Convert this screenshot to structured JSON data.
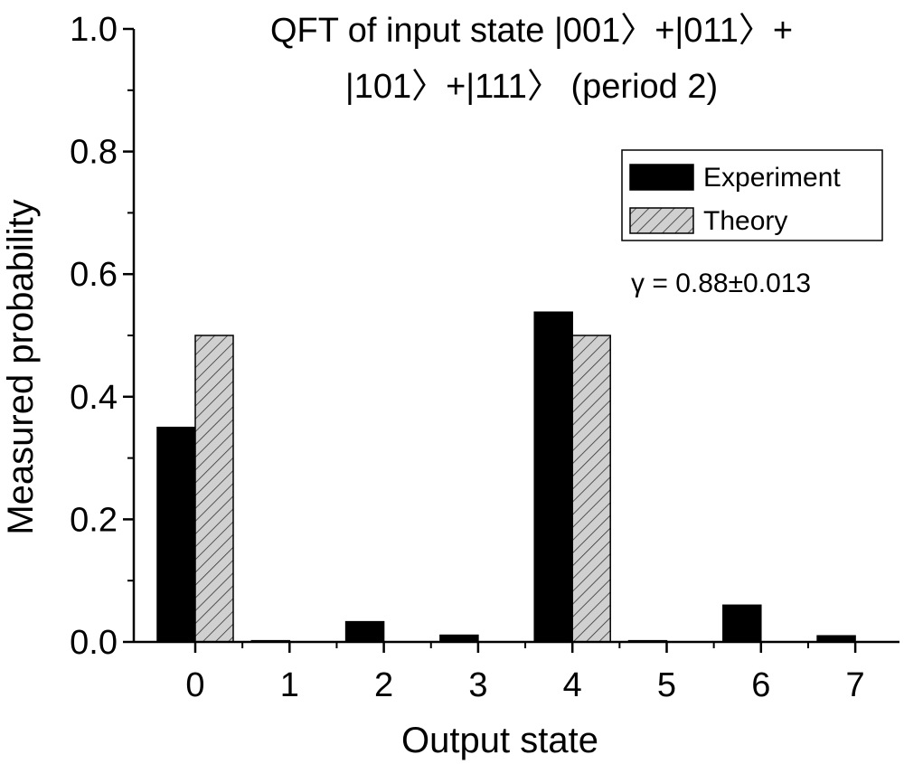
{
  "chart_data": {
    "type": "bar",
    "title_lines": [
      "QFT of input state |001〉+|011〉+",
      "|101〉+|111〉 (period 2)"
    ],
    "xlabel": "Output state",
    "ylabel": "Measured probability",
    "categories": [
      "0",
      "1",
      "2",
      "3",
      "4",
      "5",
      "6",
      "7"
    ],
    "ylim": [
      0,
      1.0
    ],
    "yticks": [
      "0.0",
      "0.2",
      "0.4",
      "0.6",
      "0.8",
      "1.0"
    ],
    "series": [
      {
        "name": "Experiment",
        "fill": "solid",
        "color": "#000000",
        "values": [
          0.35,
          0.002,
          0.033,
          0.011,
          0.538,
          0.002,
          0.06,
          0.01
        ]
      },
      {
        "name": "Theory",
        "fill": "hatched",
        "color": "#cccccc",
        "values": [
          0.5,
          0,
          0,
          0,
          0.5,
          0,
          0,
          0
        ]
      }
    ],
    "annotation": "γ = 0.88±0.013",
    "legend_position": "top-right",
    "grid": false
  }
}
